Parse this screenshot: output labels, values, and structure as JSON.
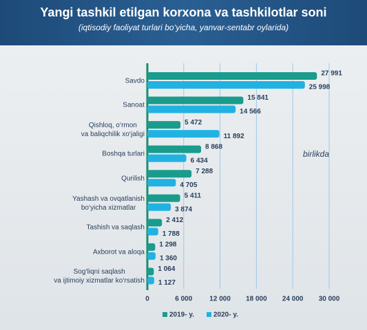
{
  "chart_data": {
    "type": "bar",
    "orientation": "horizontal",
    "title": "Yangi tashkil etilgan korxona va tashkilotlar soni",
    "subtitle": "(iqtisodiy faoliyat turlari bo‘yicha, yanvar-sentabr oylarida)",
    "annotation": "birlikda",
    "categories": [
      "Savdo",
      "Sanoat",
      "Qishloq, o‘rmon\nva baliqchilik xo‘jaligi",
      "Boshqa turlari",
      "Qurilish",
      "Yashash va ovqatlanish\nbo‘yicha xizmatlar",
      "Tashish va saqlash",
      "Axborot va aloqa",
      "Sog‘liqni saqlash\nva ijtimoiy xizmatlar ko‘rsatish"
    ],
    "series": [
      {
        "name": "2019- y.",
        "color": "#1a9c8c",
        "values": [
          27991,
          15841,
          5472,
          8868,
          7288,
          5411,
          2412,
          1298,
          1064
        ],
        "value_labels": [
          "27 991",
          "15 841",
          "5 472",
          "8 868",
          "7 288",
          "5 411",
          "2 412",
          "1 298",
          "1 064"
        ]
      },
      {
        "name": "2020- y.",
        "color": "#22b2e2",
        "values": [
          25998,
          14566,
          11892,
          6434,
          4705,
          3874,
          1788,
          1360,
          1127
        ],
        "value_labels": [
          "25 998",
          "14 566",
          "11 892",
          "6 434",
          "4 705",
          "3 874",
          "1 788",
          "1 360",
          "1 127"
        ]
      }
    ],
    "xlim": [
      0,
      30000
    ],
    "xticks": [
      0,
      {
        "value": 6000,
        "label": "6 000"
      },
      {
        "value": 12000,
        "label": "12 000"
      },
      {
        "value": 18000,
        "label": "18 000"
      },
      {
        "value": 24000,
        "label": "24 000"
      },
      {
        "value": 30000,
        "label": "30 000"
      }
    ],
    "grid": true
  }
}
